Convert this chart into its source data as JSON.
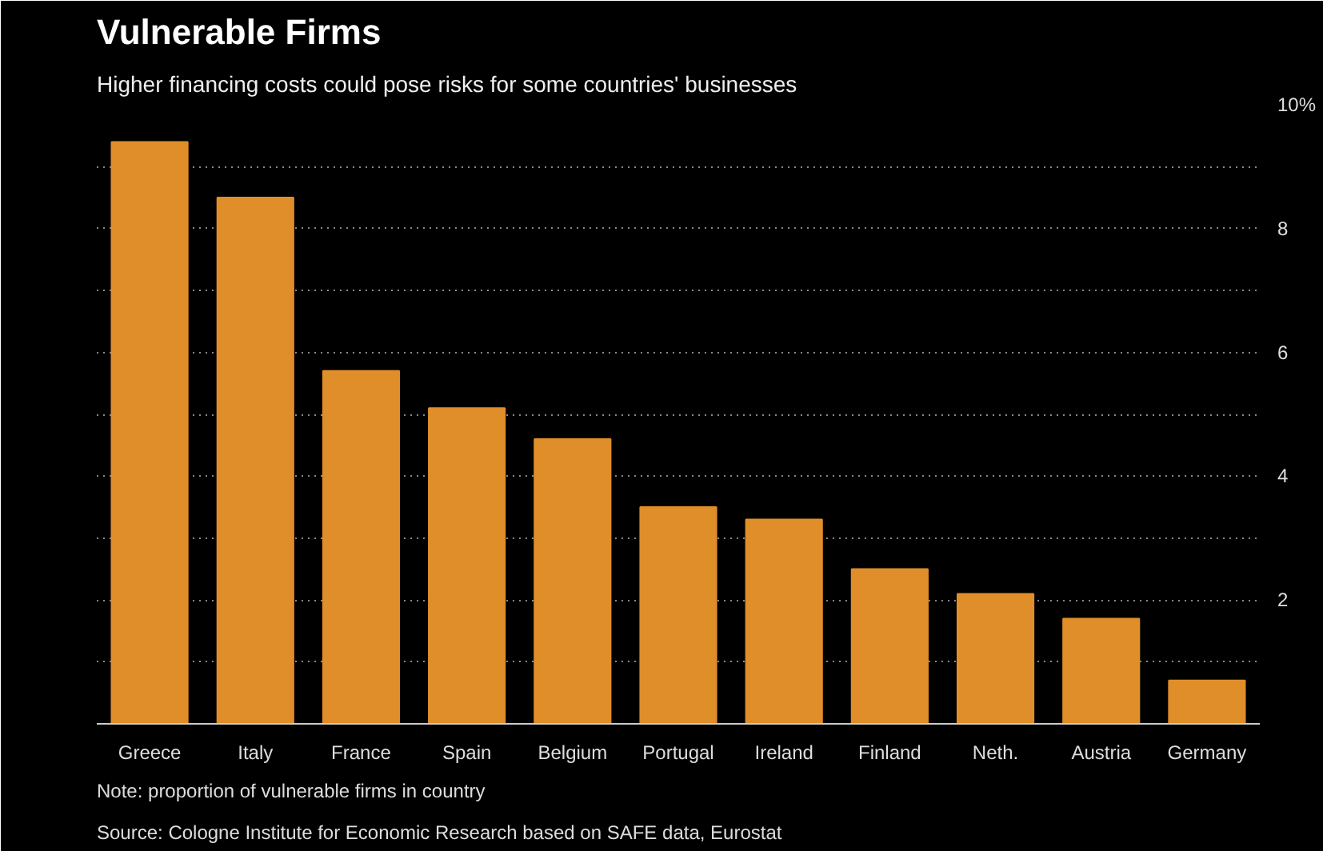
{
  "chart_data": {
    "type": "bar",
    "title": "Vulnerable Firms",
    "subtitle": "Higher financing costs could pose risks for some countries' businesses",
    "categories": [
      "Greece",
      "Italy",
      "France",
      "Spain",
      "Belgium",
      "Portugal",
      "Ireland",
      "Finland",
      "Neth.",
      "Austria",
      "Germany"
    ],
    "values": [
      9.4,
      8.5,
      5.7,
      5.1,
      4.6,
      3.5,
      3.3,
      2.5,
      2.1,
      1.7,
      0.7
    ],
    "color": "#e08e29",
    "ylim": [
      0,
      10
    ],
    "yticks": [
      {
        "value": 0,
        "label": null
      },
      {
        "value": 1,
        "label": null
      },
      2,
      {
        "value": 3,
        "label": null
      },
      4,
      {
        "value": 5,
        "label": null
      },
      6,
      {
        "value": 7,
        "label": null
      },
      8,
      {
        "value": 9,
        "label": null
      },
      {
        "value": 10,
        "label": "10%"
      }
    ],
    "grid": "y",
    "annotations": [
      "Note: proportion of vulnerable firms in country",
      "Source: Cologne Institute for Economic Research based on SAFE data, Eurostat"
    ]
  }
}
